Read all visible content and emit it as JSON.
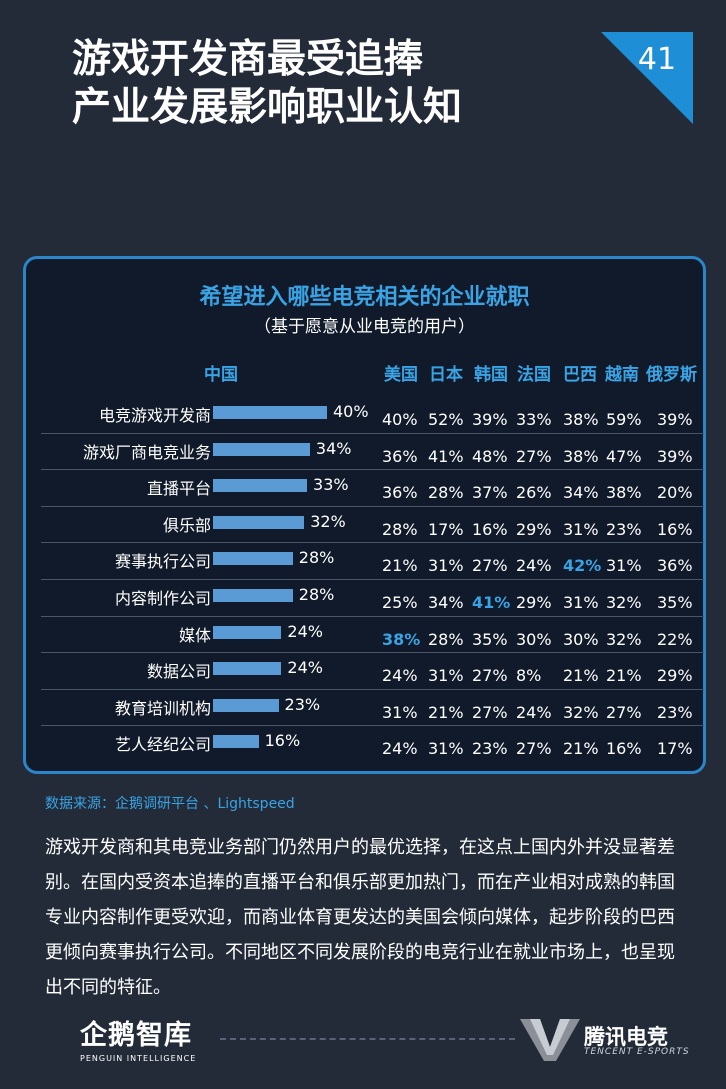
{
  "header": {
    "title_line1": "游戏开发商最受追捧",
    "title_line2": "产业发展影响职业认知",
    "page_number": "41"
  },
  "chart_data": {
    "type": "table",
    "title": "希望进入哪些电竞相关的企业就职",
    "subtitle": "（基于愿意从业电竞的用户）",
    "columns": [
      "中国",
      "美国",
      "日本",
      "韩国",
      "法国",
      "巴西",
      "越南",
      "俄罗斯"
    ],
    "categories": [
      "电竞游戏开发商",
      "游戏厂商电竞业务",
      "直播平台",
      "俱乐部",
      "赛事执行公司",
      "内容制作公司",
      "媒体",
      "数据公司",
      "教育培训机构",
      "艺人经纪公司"
    ],
    "series": [
      {
        "name": "中国",
        "values": [
          40,
          34,
          33,
          32,
          28,
          28,
          24,
          24,
          23,
          16
        ]
      },
      {
        "name": "美国",
        "values": [
          40,
          36,
          36,
          28,
          21,
          25,
          38,
          24,
          31,
          24
        ]
      },
      {
        "name": "日本",
        "values": [
          52,
          41,
          28,
          17,
          31,
          34,
          28,
          31,
          21,
          31
        ]
      },
      {
        "name": "韩国",
        "values": [
          39,
          48,
          37,
          16,
          27,
          41,
          35,
          27,
          27,
          23
        ]
      },
      {
        "name": "法国",
        "values": [
          33,
          27,
          26,
          29,
          24,
          29,
          30,
          8,
          24,
          27
        ]
      },
      {
        "name": "巴西",
        "values": [
          38,
          38,
          34,
          31,
          42,
          31,
          30,
          21,
          32,
          21
        ]
      },
      {
        "name": "越南",
        "values": [
          59,
          47,
          38,
          23,
          31,
          32,
          32,
          21,
          27,
          16
        ]
      },
      {
        "name": "俄罗斯",
        "values": [
          39,
          39,
          20,
          16,
          36,
          35,
          22,
          29,
          23,
          17
        ]
      }
    ],
    "highlights": [
      {
        "series": "巴西",
        "category": "赛事执行公司",
        "value": 42
      },
      {
        "series": "韩国",
        "category": "内容制作公司",
        "value": 41
      },
      {
        "series": "美国",
        "category": "媒体",
        "value": 38
      }
    ],
    "unit": "%",
    "accent_color": "#3aa3e4",
    "bar_color": "#5b9bd5"
  },
  "source": "数据来源：企鹅调研平台 、Lightspeed",
  "body_text": "游戏开发商和其电竞业务部门仍然用户的最优选择，在这点上国内外并没显著差别。在国内受资本追捧的直播平台和俱乐部更加热门，而在产业相对成熟的韩国专业内容制作更受欢迎，而商业体育更发达的美国会倾向媒体，起步阶段的巴西更倾向赛事执行公司。不同地区不同发展阶段的电竞行业在就业市场上，也呈现出不同的特征。",
  "footer": {
    "left_logo_name": "企鹅智库",
    "left_logo_sub": "PENGUIN INTELLIGENCE",
    "right_logo_name": "腾讯电竞",
    "right_logo_sub": "TENCENT E-SPORTS"
  }
}
